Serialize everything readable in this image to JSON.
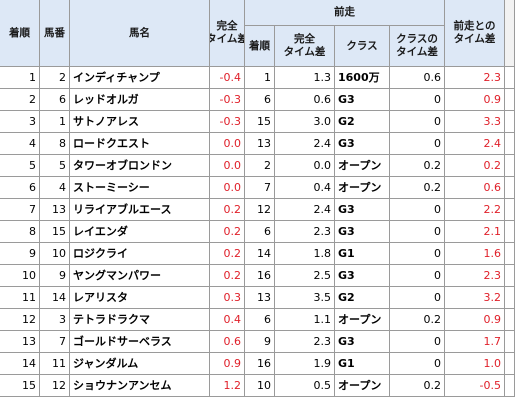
{
  "headers": {
    "rank": "着順",
    "gate": "馬番",
    "horse": "馬名",
    "time_diff": "完全\nタイム差",
    "prev_group": "前走",
    "prev_rank": "着順",
    "prev_time_diff": "完全\nタイム差",
    "prev_class": "クラス",
    "prev_class_diff": "クラスの\nタイム差",
    "vs_prev": "前走との\nタイム差"
  },
  "rows": [
    {
      "rank": "1",
      "gate": "2",
      "horse": "インディチャンプ",
      "diff": "-0.4",
      "p_rank": "1",
      "p_diff": "1.3",
      "p_class": "1600万",
      "p_cdiff": "0.6",
      "vs": "2.3"
    },
    {
      "rank": "2",
      "gate": "6",
      "horse": "レッドオルガ",
      "diff": "-0.3",
      "p_rank": "6",
      "p_diff": "0.6",
      "p_class": "G3",
      "p_cdiff": "0",
      "vs": "0.9"
    },
    {
      "rank": "3",
      "gate": "1",
      "horse": "サトノアレス",
      "diff": "-0.3",
      "p_rank": "15",
      "p_diff": "3.0",
      "p_class": "G2",
      "p_cdiff": "0",
      "vs": "3.3"
    },
    {
      "rank": "4",
      "gate": "8",
      "horse": "ロードクエスト",
      "diff": "0.0",
      "p_rank": "13",
      "p_diff": "2.4",
      "p_class": "G3",
      "p_cdiff": "0",
      "vs": "2.4"
    },
    {
      "rank": "5",
      "gate": "5",
      "horse": "タワーオブロンドン",
      "diff": "0.0",
      "p_rank": "2",
      "p_diff": "0.0",
      "p_class": "オープン",
      "p_cdiff": "0.2",
      "vs": "0.2"
    },
    {
      "rank": "6",
      "gate": "4",
      "horse": "ストーミーシー",
      "diff": "0.0",
      "p_rank": "7",
      "p_diff": "0.4",
      "p_class": "オープン",
      "p_cdiff": "0.2",
      "vs": "0.6"
    },
    {
      "rank": "7",
      "gate": "13",
      "horse": "リライアブルエース",
      "diff": "0.2",
      "p_rank": "12",
      "p_diff": "2.4",
      "p_class": "G3",
      "p_cdiff": "0",
      "vs": "2.2"
    },
    {
      "rank": "8",
      "gate": "15",
      "horse": "レイエンダ",
      "diff": "0.2",
      "p_rank": "6",
      "p_diff": "2.3",
      "p_class": "G3",
      "p_cdiff": "0",
      "vs": "2.1"
    },
    {
      "rank": "9",
      "gate": "10",
      "horse": "ロジクライ",
      "diff": "0.2",
      "p_rank": "14",
      "p_diff": "1.8",
      "p_class": "G1",
      "p_cdiff": "0",
      "vs": "1.6"
    },
    {
      "rank": "10",
      "gate": "9",
      "horse": "ヤングマンパワー",
      "diff": "0.2",
      "p_rank": "16",
      "p_diff": "2.5",
      "p_class": "G3",
      "p_cdiff": "0",
      "vs": "2.3"
    },
    {
      "rank": "11",
      "gate": "14",
      "horse": "レアリスタ",
      "diff": "0.3",
      "p_rank": "13",
      "p_diff": "3.5",
      "p_class": "G2",
      "p_cdiff": "0",
      "vs": "3.2"
    },
    {
      "rank": "12",
      "gate": "3",
      "horse": "テトラドラクマ",
      "diff": "0.4",
      "p_rank": "6",
      "p_diff": "1.1",
      "p_class": "オープン",
      "p_cdiff": "0.2",
      "vs": "0.9"
    },
    {
      "rank": "13",
      "gate": "7",
      "horse": "ゴールドサーベラス",
      "diff": "0.6",
      "p_rank": "9",
      "p_diff": "2.3",
      "p_class": "G3",
      "p_cdiff": "0",
      "vs": "1.7"
    },
    {
      "rank": "14",
      "gate": "11",
      "horse": "ジャンダルム",
      "diff": "0.9",
      "p_rank": "16",
      "p_diff": "1.9",
      "p_class": "G1",
      "p_cdiff": "0",
      "vs": "1.0"
    },
    {
      "rank": "15",
      "gate": "12",
      "horse": "ショウナンアンセム",
      "diff": "1.2",
      "p_rank": "10",
      "p_diff": "0.5",
      "p_class": "オープン",
      "p_cdiff": "0.2",
      "vs": "-0.5"
    }
  ],
  "colors": {
    "highlight_red": "#e0202a",
    "header_bg": "#dde8f6",
    "grid": "#9a9a9a"
  }
}
